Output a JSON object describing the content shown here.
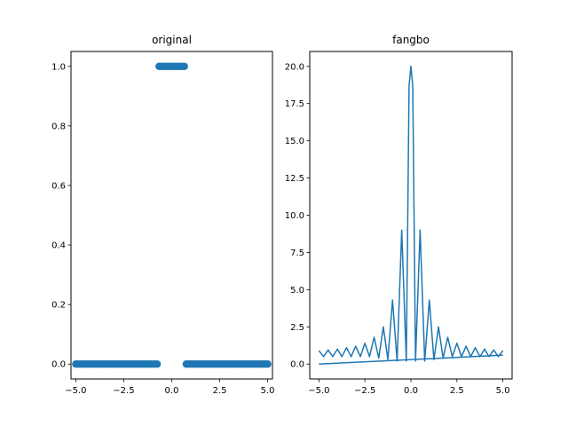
{
  "colors": {
    "series": "#1f77b4",
    "axes": "#000000",
    "background": "#ffffff"
  },
  "chart_data": [
    {
      "type": "scatter",
      "title": "original",
      "xlabel": "",
      "ylabel": "",
      "xlim": [
        -5.25,
        5.25
      ],
      "ylim": [
        -0.05,
        1.05
      ],
      "xticks": [
        -5.0,
        -2.5,
        0.0,
        2.5,
        5.0
      ],
      "xtick_labels": [
        "−5.0",
        "−2.5",
        "0.0",
        "2.5",
        "5.0"
      ],
      "yticks": [
        0.0,
        0.2,
        0.4,
        0.6,
        0.8,
        1.0
      ],
      "ytick_labels": [
        "0.0",
        "0.2",
        "0.4",
        "0.6",
        "0.8",
        "1.0"
      ],
      "grid": false,
      "x_start": -5.0,
      "x_end": 5.0,
      "n_points": 100,
      "pulse_start": -0.7,
      "pulse_end": 0.7,
      "low_value": 0.0,
      "high_value": 1.0
    },
    {
      "type": "line",
      "title": "fangbo",
      "xlabel": "",
      "ylabel": "",
      "xlim": [
        -5.5,
        5.5
      ],
      "ylim": [
        -1.0,
        21.0
      ],
      "xticks": [
        -5.0,
        -2.5,
        0.0,
        2.5,
        5.0
      ],
      "xtick_labels": [
        "−5.0",
        "−2.5",
        "0.0",
        "2.5",
        "5.0"
      ],
      "yticks": [
        0.0,
        2.5,
        5.0,
        7.5,
        10.0,
        12.5,
        15.0,
        17.5,
        20.0
      ],
      "ytick_labels": [
        "0.0",
        "2.5",
        "5.0",
        "7.5",
        "10.0",
        "12.5",
        "15.0",
        "17.5",
        "20.0"
      ],
      "grid": false,
      "x_start": -5.0,
      "x_end": 5.0,
      "n_points": 100,
      "x": [
        -5.0,
        -4.75,
        -4.5,
        -4.25,
        -4.0,
        -3.75,
        -3.5,
        -3.25,
        -3.0,
        -2.75,
        -2.5,
        -2.25,
        -2.0,
        -1.75,
        -1.5,
        -1.25,
        -1.0,
        -0.75,
        -0.5,
        -0.25,
        -0.1,
        0.0,
        0.1,
        0.25,
        0.5,
        0.75,
        1.0,
        1.25,
        1.5,
        1.75,
        2.0,
        2.25,
        2.5,
        2.75,
        3.0,
        3.25,
        3.5,
        3.75,
        4.0,
        4.25,
        4.5,
        4.75,
        5.0
      ],
      "y": [
        0.9,
        0.5,
        0.95,
        0.5,
        1.0,
        0.5,
        1.1,
        0.5,
        1.2,
        0.5,
        1.4,
        0.5,
        1.8,
        0.4,
        2.5,
        0.3,
        4.3,
        0.2,
        9.0,
        0.2,
        18.7,
        20.0,
        18.7,
        0.2,
        9.0,
        0.2,
        4.3,
        0.3,
        2.5,
        0.4,
        1.8,
        0.5,
        1.4,
        0.5,
        1.2,
        0.5,
        1.1,
        0.5,
        1.0,
        0.5,
        0.95,
        0.5,
        0.9
      ]
    }
  ]
}
